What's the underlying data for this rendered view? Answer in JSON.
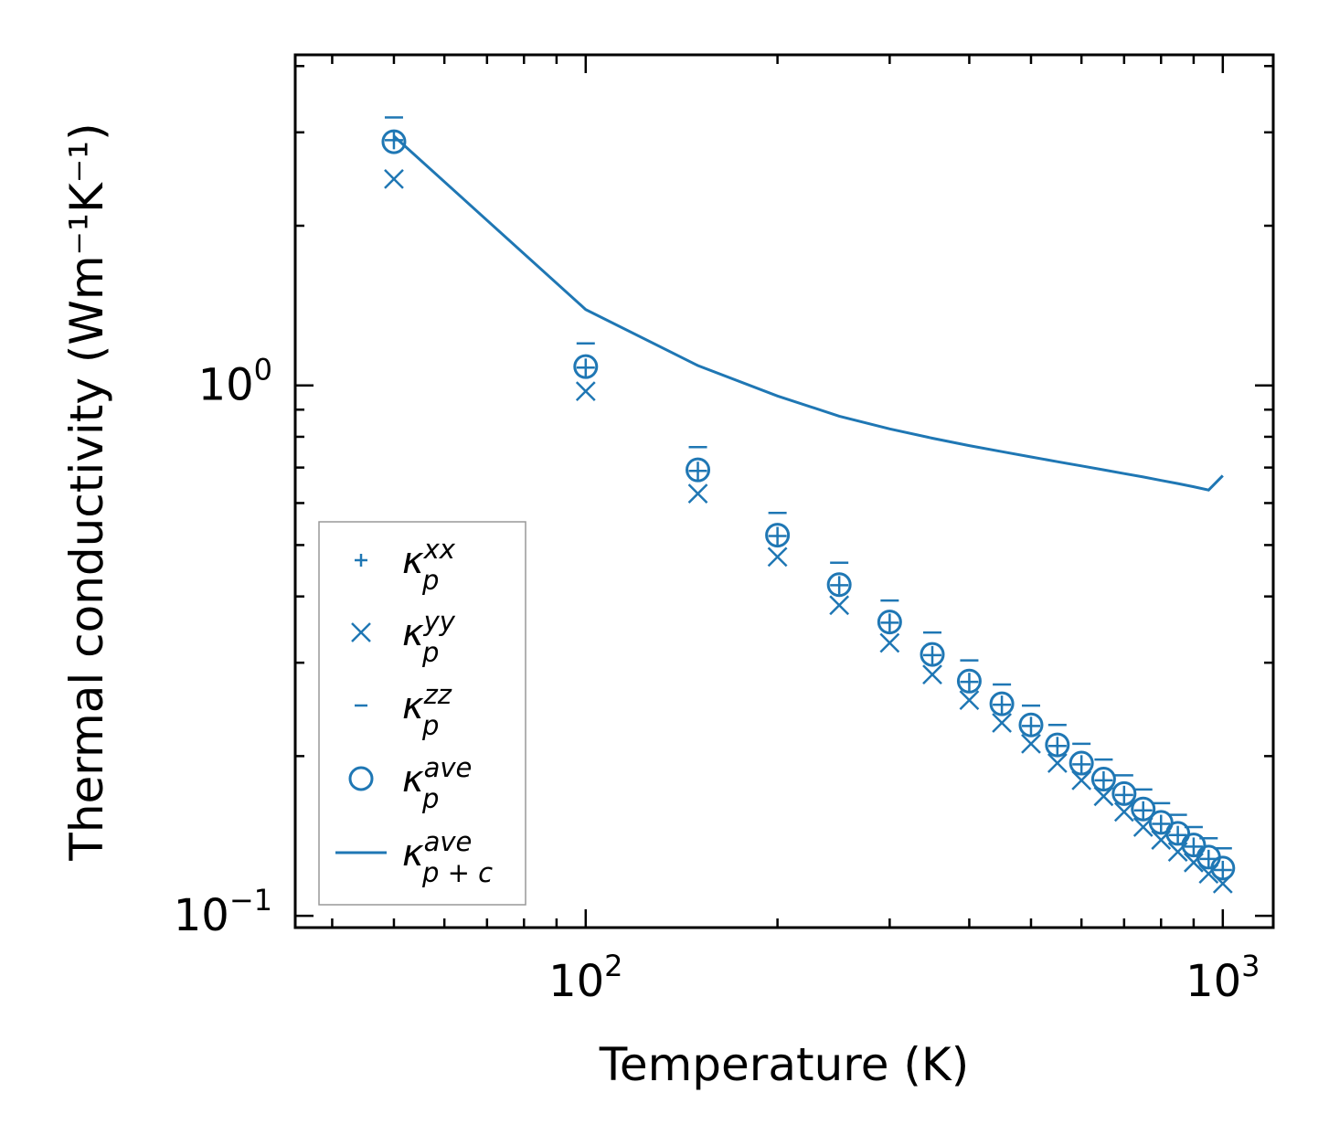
{
  "chart_data": {
    "type": "scatter",
    "xscale": "log",
    "yscale": "log",
    "xlabel": "Temperature (K)",
    "ylabel": "Thermal conductivity (Wm⁻¹K⁻¹)",
    "xlim": [
      35,
      1200
    ],
    "ylim": [
      0.095,
      4.2
    ],
    "x_ticks": [
      {
        "base": "10",
        "exp": "2",
        "value": 100
      },
      {
        "base": "10",
        "exp": "3",
        "value": 1000
      }
    ],
    "y_ticks": [
      {
        "base": "10",
        "exp": "−1",
        "value": 0.1
      },
      {
        "base": "10",
        "exp": "0",
        "value": 1
      }
    ],
    "x": [
      50,
      100,
      150,
      200,
      250,
      300,
      350,
      400,
      450,
      500,
      550,
      600,
      650,
      700,
      750,
      800,
      850,
      900,
      950,
      1000
    ],
    "series": [
      {
        "name": "kappa_p_xx",
        "marker": "plus",
        "values": [
          2.9,
          1.08,
          0.69,
          0.52,
          0.42,
          0.357,
          0.31,
          0.276,
          0.25,
          0.228,
          0.209,
          0.193,
          0.18,
          0.169,
          0.158,
          0.149,
          0.142,
          0.135,
          0.128,
          0.122
        ]
      },
      {
        "name": "kappa_p_yy",
        "marker": "x",
        "values": [
          2.45,
          0.975,
          0.625,
          0.475,
          0.385,
          0.327,
          0.285,
          0.255,
          0.231,
          0.211,
          0.194,
          0.18,
          0.168,
          0.157,
          0.147,
          0.139,
          0.132,
          0.126,
          0.12,
          0.115
        ]
      },
      {
        "name": "kappa_p_zz",
        "marker": "hline",
        "values": [
          3.2,
          1.2,
          0.765,
          0.575,
          0.463,
          0.393,
          0.342,
          0.303,
          0.273,
          0.249,
          0.229,
          0.211,
          0.197,
          0.184,
          0.173,
          0.163,
          0.155,
          0.147,
          0.14,
          0.134
        ]
      },
      {
        "name": "kappa_p_ave",
        "marker": "circle",
        "values": [
          2.88,
          1.085,
          0.693,
          0.522,
          0.421,
          0.358,
          0.311,
          0.277,
          0.251,
          0.229,
          0.21,
          0.194,
          0.181,
          0.17,
          0.159,
          0.15,
          0.143,
          0.136,
          0.129,
          0.123
        ]
      },
      {
        "name": "kappa_p+c_ave",
        "marker": "line",
        "values": [
          2.95,
          1.39,
          1.09,
          0.955,
          0.875,
          0.828,
          0.795,
          0.77,
          0.75,
          0.733,
          0.718,
          0.705,
          0.693,
          0.682,
          0.672,
          0.662,
          0.653,
          0.644,
          0.635,
          0.676
        ]
      }
    ],
    "legend": {
      "position": "lower-left",
      "entries": [
        {
          "marker": "plus",
          "symbol": "κ",
          "sub": "p",
          "sup": "xx"
        },
        {
          "marker": "x",
          "symbol": "κ",
          "sub": "p",
          "sup": "yy"
        },
        {
          "marker": "hline",
          "symbol": "κ",
          "sub": "p",
          "sup": "zz"
        },
        {
          "marker": "circle",
          "symbol": "κ",
          "sub": "p",
          "sup": "ave"
        },
        {
          "marker": "line",
          "symbol": "κ",
          "sub": "p + c",
          "sup": "ave"
        }
      ]
    },
    "color": "#1f77b4"
  }
}
